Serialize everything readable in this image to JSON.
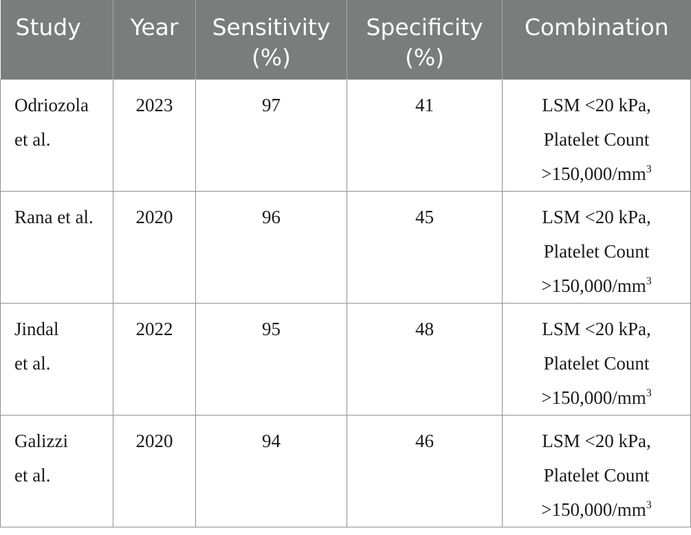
{
  "table": {
    "headers": [
      {
        "line1": "Study",
        "line2": ""
      },
      {
        "line1": "Year",
        "line2": ""
      },
      {
        "line1": "Sensitivity",
        "line2": "(%)"
      },
      {
        "line1": "Specificity",
        "line2": "(%)"
      },
      {
        "line1": "Combination",
        "line2": ""
      }
    ],
    "rows": [
      {
        "study_line1": "Odriozola",
        "study_line2": "et al.",
        "year": "2023",
        "sensitivity": "97",
        "specificity": "41",
        "comb_line1": "LSM <20 kPa,",
        "comb_line2": "Platelet Count",
        "comb_line3": ">150,000/mm",
        "comb_sup": "3"
      },
      {
        "study_line1": "Rana et al.",
        "study_line2": "",
        "year": "2020",
        "sensitivity": "96",
        "specificity": "45",
        "comb_line1": "LSM <20 kPa,",
        "comb_line2": "Platelet Count",
        "comb_line3": ">150,000/mm",
        "comb_sup": "3"
      },
      {
        "study_line1": "Jindal",
        "study_line2": "et al.",
        "year": "2022",
        "sensitivity": "95",
        "specificity": "48",
        "comb_line1": "LSM <20 kPa,",
        "comb_line2": "Platelet Count",
        "comb_line3": ">150,000/mm",
        "comb_sup": "3"
      },
      {
        "study_line1": "Galizzi",
        "study_line2": "et al.",
        "year": "2020",
        "sensitivity": "94",
        "specificity": "46",
        "comb_line1": "LSM <20 kPa,",
        "comb_line2": "Platelet Count",
        "comb_line3": ">150,000/mm",
        "comb_sup": "3"
      }
    ]
  }
}
